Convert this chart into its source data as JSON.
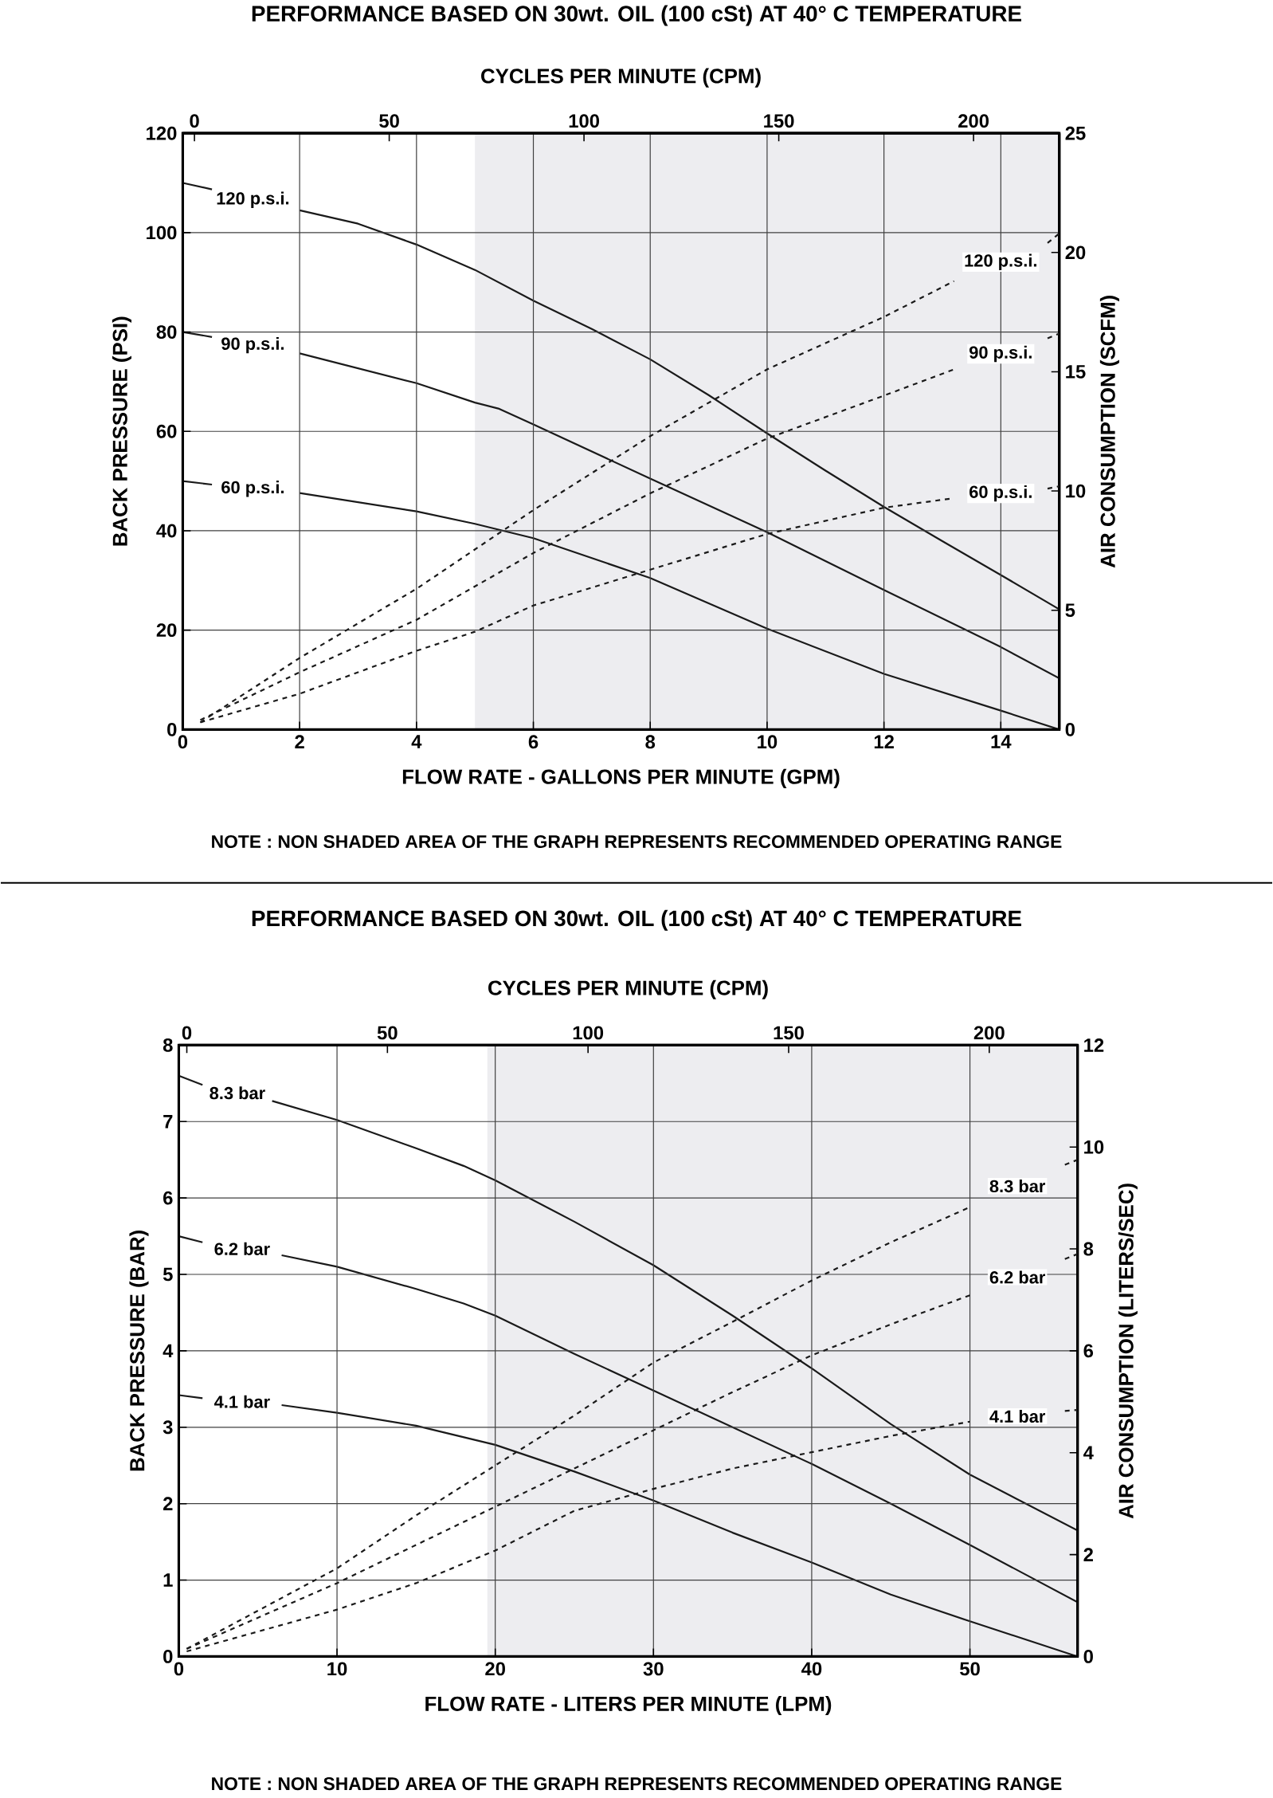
{
  "chart_data": [
    {
      "type": "line",
      "title": "PERFORMANCE BASED ON 30wt. OIL (100 cSt) AT 40° C TEMPERATURE",
      "xlabel": "FLOW RATE - GALLONS PER MINUTE (GPM)",
      "ylabel": "BACK PRESSURE  (PSI)",
      "y2label": "AIR CONSUMPTION  (SCFM)",
      "x2label": "CYCLES PER MINUTE (CPM)",
      "xlim": [
        0,
        15
      ],
      "xticks": [
        0,
        2,
        4,
        6,
        8,
        10,
        12,
        14
      ],
      "ylim": [
        0,
        120
      ],
      "yticks": [
        0,
        20,
        40,
        60,
        80,
        100,
        120
      ],
      "y2lim": [
        0,
        25
      ],
      "y2ticks": [
        0,
        5,
        10,
        15,
        20,
        25
      ],
      "x2lim": [
        -3,
        222
      ],
      "x2ticks": [
        0,
        50,
        100,
        150,
        200
      ],
      "grid": true,
      "bands": [
        {
          "axis": "x",
          "from": 5,
          "to": 15,
          "color": "#ededf0"
        }
      ],
      "annotations": [
        "NOTE : NON SHADED AREA OF THE GRAPH REPRESENTS RECOMMENDED OPERATING RANGE"
      ],
      "series": [
        {
          "name": "120 p.s.i.",
          "color": "#1a1a1a",
          "line_style": "solid",
          "x": [
            0,
            0.5,
            1.2,
            2,
            3,
            4,
            5,
            6,
            7,
            8,
            9,
            10,
            11,
            12,
            13,
            14,
            15
          ],
          "values": [
            110,
            108.7,
            null,
            104.5,
            101.8,
            97.6,
            92.5,
            86.3,
            80.6,
            74.5,
            67.3,
            59.6,
            52.1,
            44.8,
            37.9,
            31.1,
            24.2
          ]
        },
        {
          "name": "90 p.s.i.",
          "color": "#1a1a1a",
          "line_style": "solid",
          "x": [
            0,
            0.5,
            1.2,
            2,
            4,
            5,
            5.4,
            6,
            8,
            10,
            12,
            14,
            15
          ],
          "values": [
            80,
            79,
            null,
            75.7,
            69.7,
            65.8,
            64.6,
            61.4,
            50.5,
            39.7,
            28.1,
            16.6,
            10.3
          ]
        },
        {
          "name": "60 p.s.i.",
          "color": "#1a1a1a",
          "line_style": "solid",
          "x": [
            0,
            0.5,
            1.2,
            2,
            4,
            5,
            6,
            8,
            10,
            12,
            14,
            15
          ],
          "values": [
            50,
            49.3,
            null,
            47.6,
            43.9,
            41.4,
            38.5,
            30.5,
            20.3,
            11.2,
            3.8,
            0
          ]
        },
        {
          "name": "120 p.s.i.",
          "color": "#1a1a1a",
          "line_style": "dashed",
          "axis": "y2",
          "x": [
            0.3,
            2,
            4,
            6,
            8,
            10,
            12,
            13.2,
            14,
            14.8,
            15
          ],
          "values": [
            0.3,
            3,
            5.9,
            9.2,
            12.3,
            15.1,
            17.3,
            18.8,
            null,
            20.4,
            20.8
          ]
        },
        {
          "name": "90 p.s.i.",
          "color": "#1a1a1a",
          "line_style": "dashed",
          "axis": "y2",
          "x": [
            0.3,
            2,
            4,
            6,
            8,
            10,
            12,
            13.2,
            14,
            14.8,
            15
          ],
          "values": [
            0.4,
            2.4,
            4.6,
            7.4,
            9.9,
            12.2,
            14,
            15.1,
            null,
            16.4,
            16.6
          ]
        },
        {
          "name": "60 p.s.i.",
          "color": "#1a1a1a",
          "line_style": "dashed",
          "axis": "y2",
          "x": [
            0.3,
            2,
            4,
            5,
            6,
            8,
            10,
            12,
            13.2,
            14,
            14.8,
            15
          ],
          "values": [
            0.3,
            1.5,
            3.3,
            4.1,
            5.2,
            6.7,
            8.2,
            9.3,
            9.7,
            null,
            10.1,
            10.2
          ]
        }
      ]
    },
    {
      "type": "line",
      "title": "PERFORMANCE BASED ON 30wt. OIL (100 cSt) AT 40° C TEMPERATURE",
      "xlabel": "FLOW RATE - LITERS PER MINUTE (LPM)",
      "ylabel": "BACK PRESSURE  (BAR)",
      "y2label": "AIR CONSUMPTION  (LITERS/SEC)",
      "x2label": "CYCLES PER MINUTE (CPM)",
      "xlim": [
        0,
        56.8
      ],
      "xticks": [
        0,
        10,
        20,
        30,
        40,
        50
      ],
      "ylim": [
        0,
        8
      ],
      "yticks": [
        0,
        1,
        2,
        3,
        4,
        5,
        6,
        7,
        8
      ],
      "y2lim": [
        0,
        12
      ],
      "y2ticks": [
        0,
        2,
        4,
        6,
        8,
        10,
        12
      ],
      "x2lim": [
        -2,
        222
      ],
      "x2ticks": [
        0,
        50,
        100,
        150,
        200
      ],
      "grid": true,
      "bands": [
        {
          "axis": "x",
          "from": 19.5,
          "to": 56.8,
          "color": "#ededf0"
        }
      ],
      "annotations": [
        "NOTE : NON SHADED AREA OF THE GRAPH REPRESENTS RECOMMENDED OPERATING RANGE"
      ],
      "series": [
        {
          "name": "8.3 bar",
          "color": "#1a1a1a",
          "line_style": "solid",
          "x": [
            0,
            1.5,
            3.7,
            5.9,
            10,
            15,
            18,
            20,
            25,
            30,
            35,
            40,
            45,
            50,
            56.8
          ],
          "values": [
            7.6,
            7.48,
            null,
            7.27,
            7.02,
            6.65,
            6.42,
            6.23,
            5.69,
            5.12,
            4.46,
            3.77,
            3.04,
            2.38,
            1.65
          ]
        },
        {
          "name": "6.2 bar",
          "color": "#1a1a1a",
          "line_style": "solid",
          "x": [
            0,
            1.5,
            4,
            6.5,
            10,
            15,
            18,
            20,
            25,
            30,
            35,
            40,
            45,
            50,
            56.8
          ],
          "values": [
            5.5,
            5.42,
            null,
            5.25,
            5.1,
            4.81,
            4.62,
            4.46,
            3.96,
            3.48,
            3,
            2.52,
            2,
            1.46,
            0.71
          ]
        },
        {
          "name": "4.1 bar",
          "color": "#1a1a1a",
          "line_style": "solid",
          "x": [
            0,
            1.5,
            4,
            6.5,
            10,
            15,
            20,
            25,
            30,
            35,
            40,
            45,
            50,
            56.8
          ],
          "values": [
            3.42,
            3.38,
            null,
            3.29,
            3.19,
            3.02,
            2.77,
            2.42,
            2.04,
            1.62,
            1.23,
            0.81,
            0.46,
            0
          ]
        },
        {
          "name": "8.3 bar",
          "color": "#1a1a1a",
          "line_style": "dashed",
          "axis": "y2",
          "x": [
            0.5,
            10,
            15,
            20,
            25,
            30,
            35,
            40,
            45,
            50,
            53,
            56,
            56.8
          ],
          "values": [
            0.15,
            1.73,
            2.77,
            3.75,
            4.73,
            5.77,
            6.57,
            7.38,
            8.13,
            8.82,
            null,
            9.65,
            9.75
          ]
        },
        {
          "name": "6.2 bar",
          "color": "#1a1a1a",
          "line_style": "dashed",
          "axis": "y2",
          "x": [
            0.5,
            10,
            15,
            20,
            25,
            30,
            35,
            40,
            45,
            50,
            53,
            56,
            56.8
          ],
          "values": [
            0.15,
            1.44,
            2.19,
            2.94,
            3.69,
            4.44,
            5.19,
            5.91,
            6.52,
            7.09,
            null,
            7.8,
            7.9
          ]
        },
        {
          "name": "4.1 bar",
          "color": "#1a1a1a",
          "line_style": "dashed",
          "axis": "y2",
          "x": [
            0.5,
            10,
            15,
            20,
            25,
            30,
            35,
            40,
            45,
            50,
            53,
            56,
            56.8
          ],
          "values": [
            0.1,
            0.92,
            1.44,
            2.08,
            2.86,
            3.29,
            3.69,
            4.01,
            4.33,
            4.61,
            null,
            4.82,
            4.84
          ]
        }
      ]
    }
  ]
}
